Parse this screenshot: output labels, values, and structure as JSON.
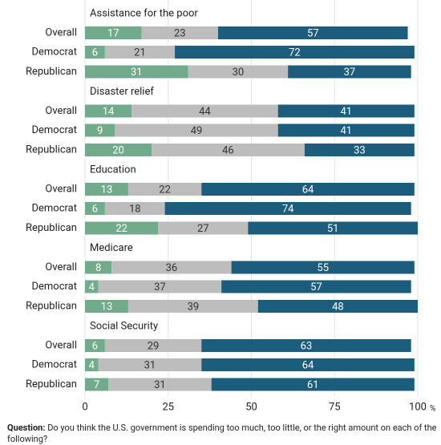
{
  "chart_data": {
    "type": "bar",
    "orientation": "horizontal",
    "stacked": true,
    "groups": [
      {
        "label": "Assistance for the poor",
        "categories": [
          "Overall",
          "Democrat",
          "Republican"
        ],
        "series": [
          {
            "color": "#72ab8c",
            "values": [
              17,
              6,
              31
            ]
          },
          {
            "color": "#bdbdbd",
            "values": [
              23,
              21,
              30
            ]
          },
          {
            "color": "#1c5d7e",
            "values": [
              57,
              72,
              37
            ]
          }
        ]
      },
      {
        "label": "Disaster relief",
        "categories": [
          "Overall",
          "Democrat",
          "Republican"
        ],
        "series": [
          {
            "color": "#72ab8c",
            "values": [
              14,
              9,
              20
            ]
          },
          {
            "color": "#bdbdbd",
            "values": [
              44,
              49,
              46
            ]
          },
          {
            "color": "#1c5d7e",
            "values": [
              41,
              41,
              33
            ]
          }
        ]
      },
      {
        "label": "Education",
        "categories": [
          "Overall",
          "Democrat",
          "Republican"
        ],
        "series": [
          {
            "color": "#72ab8c",
            "values": [
              13,
              6,
              22
            ]
          },
          {
            "color": "#bdbdbd",
            "values": [
              22,
              18,
              27
            ]
          },
          {
            "color": "#1c5d7e",
            "values": [
              64,
              74,
              51
            ]
          }
        ]
      },
      {
        "label": "Medicare",
        "categories": [
          "Overall",
          "Democrat",
          "Republican"
        ],
        "series": [
          {
            "color": "#72ab8c",
            "values": [
              8,
              4,
              13
            ]
          },
          {
            "color": "#bdbdbd",
            "values": [
              36,
              37,
              39
            ]
          },
          {
            "color": "#1c5d7e",
            "values": [
              55,
              57,
              48
            ]
          }
        ]
      },
      {
        "label": "Social Security",
        "categories": [
          "Overall",
          "Democrat",
          "Republican"
        ],
        "series": [
          {
            "color": "#72ab8c",
            "values": [
              6,
              4,
              7
            ]
          },
          {
            "color": "#bdbdbd",
            "values": [
              29,
              31,
              31
            ]
          },
          {
            "color": "#1c5d7e",
            "values": [
              63,
              64,
              61
            ]
          }
        ]
      }
    ],
    "xlim": [
      0,
      100
    ],
    "xticks": [
      0,
      25,
      50,
      75,
      100
    ],
    "x_unit": "%",
    "grid": true,
    "note": {
      "label": "Question:",
      "text": "Do you think the U.S. government is spending too much, too little, or the right amount on each of the following?"
    }
  }
}
